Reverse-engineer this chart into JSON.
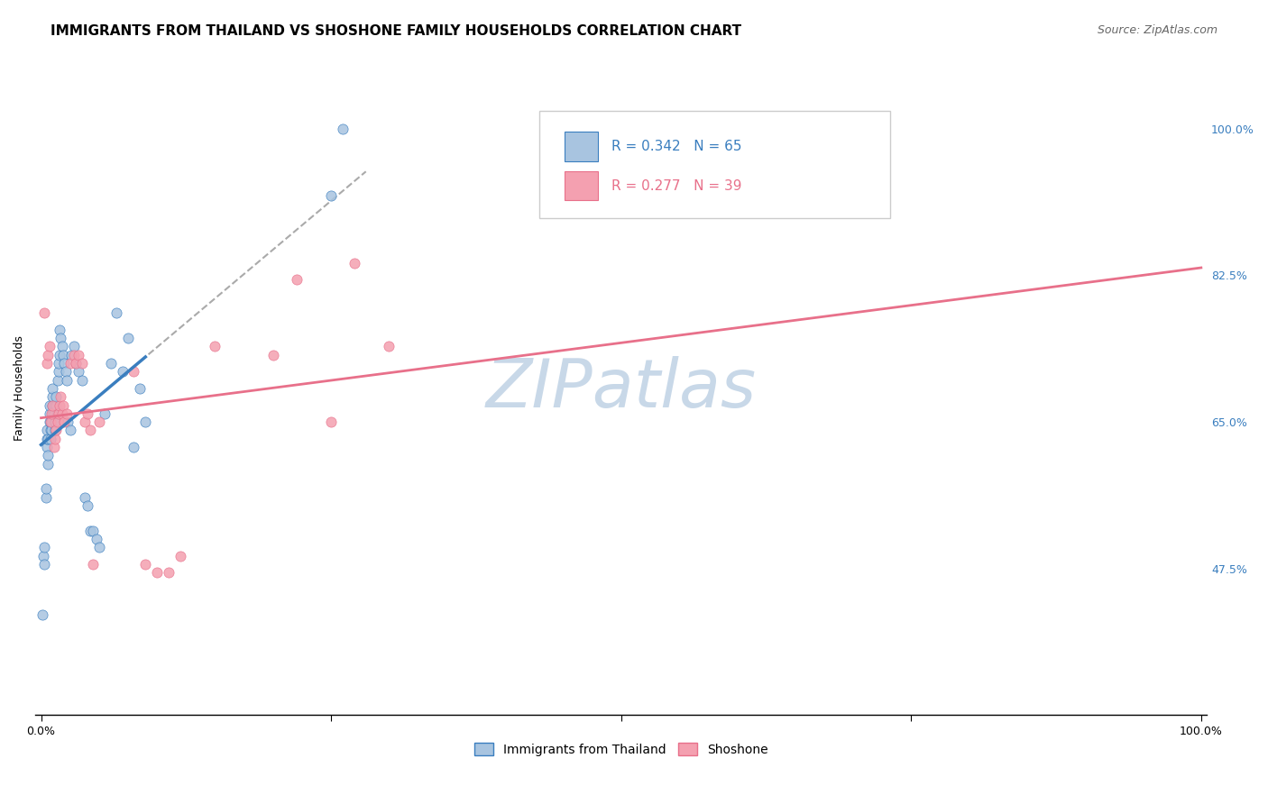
{
  "title": "IMMIGRANTS FROM THAILAND VS SHOSHONE FAMILY HOUSEHOLDS CORRELATION CHART",
  "source": "Source: ZipAtlas.com",
  "ylabel": "Family Households",
  "y_tick_positions": [
    0.475,
    0.65,
    0.825,
    1.0
  ],
  "xlim": [
    -0.005,
    1.005
  ],
  "ylim": [
    0.3,
    1.08
  ],
  "thailand_R": 0.342,
  "thailand_N": 65,
  "shoshone_R": 0.277,
  "shoshone_N": 39,
  "thailand_color": "#a8c4e0",
  "shoshone_color": "#f4a0b0",
  "thailand_line_color": "#3a7ebf",
  "shoshone_line_color": "#e8708a",
  "diagonal_color": "#aaaaaa",
  "thailand_x": [
    0.001,
    0.002,
    0.003,
    0.003,
    0.004,
    0.004,
    0.005,
    0.005,
    0.005,
    0.006,
    0.006,
    0.006,
    0.007,
    0.007,
    0.007,
    0.008,
    0.008,
    0.008,
    0.009,
    0.009,
    0.01,
    0.01,
    0.01,
    0.01,
    0.011,
    0.011,
    0.012,
    0.012,
    0.013,
    0.013,
    0.014,
    0.014,
    0.015,
    0.015,
    0.016,
    0.016,
    0.017,
    0.018,
    0.019,
    0.02,
    0.021,
    0.022,
    0.023,
    0.025,
    0.026,
    0.028,
    0.03,
    0.032,
    0.035,
    0.038,
    0.04,
    0.042,
    0.045,
    0.048,
    0.05,
    0.055,
    0.06,
    0.065,
    0.07,
    0.075,
    0.08,
    0.085,
    0.09,
    0.25,
    0.26
  ],
  "thailand_y": [
    0.42,
    0.49,
    0.48,
    0.5,
    0.56,
    0.57,
    0.62,
    0.63,
    0.64,
    0.6,
    0.61,
    0.63,
    0.65,
    0.66,
    0.67,
    0.63,
    0.64,
    0.65,
    0.64,
    0.65,
    0.66,
    0.67,
    0.68,
    0.69,
    0.66,
    0.67,
    0.64,
    0.65,
    0.67,
    0.68,
    0.66,
    0.7,
    0.71,
    0.72,
    0.73,
    0.76,
    0.75,
    0.74,
    0.73,
    0.72,
    0.71,
    0.7,
    0.65,
    0.64,
    0.73,
    0.74,
    0.72,
    0.71,
    0.7,
    0.56,
    0.55,
    0.52,
    0.52,
    0.51,
    0.5,
    0.66,
    0.72,
    0.78,
    0.71,
    0.75,
    0.62,
    0.69,
    0.65,
    0.92,
    1.0
  ],
  "shoshone_x": [
    0.003,
    0.005,
    0.006,
    0.007,
    0.008,
    0.009,
    0.01,
    0.011,
    0.012,
    0.013,
    0.014,
    0.015,
    0.016,
    0.017,
    0.018,
    0.019,
    0.02,
    0.022,
    0.025,
    0.028,
    0.03,
    0.032,
    0.035,
    0.038,
    0.04,
    0.042,
    0.045,
    0.05,
    0.08,
    0.09,
    0.1,
    0.11,
    0.12,
    0.15,
    0.2,
    0.22,
    0.25,
    0.27,
    0.3
  ],
  "shoshone_y": [
    0.78,
    0.72,
    0.73,
    0.74,
    0.65,
    0.66,
    0.67,
    0.62,
    0.63,
    0.64,
    0.65,
    0.66,
    0.67,
    0.68,
    0.66,
    0.67,
    0.65,
    0.66,
    0.72,
    0.73,
    0.72,
    0.73,
    0.72,
    0.65,
    0.66,
    0.64,
    0.48,
    0.65,
    0.71,
    0.48,
    0.47,
    0.47,
    0.49,
    0.74,
    0.73,
    0.82,
    0.65,
    0.84,
    0.74
  ],
  "watermark": "ZIPatlas",
  "watermark_color": "#c8d8e8",
  "title_fontsize": 11,
  "source_fontsize": 9,
  "axis_label_fontsize": 9,
  "tick_fontsize": 9,
  "legend_fontsize": 11
}
